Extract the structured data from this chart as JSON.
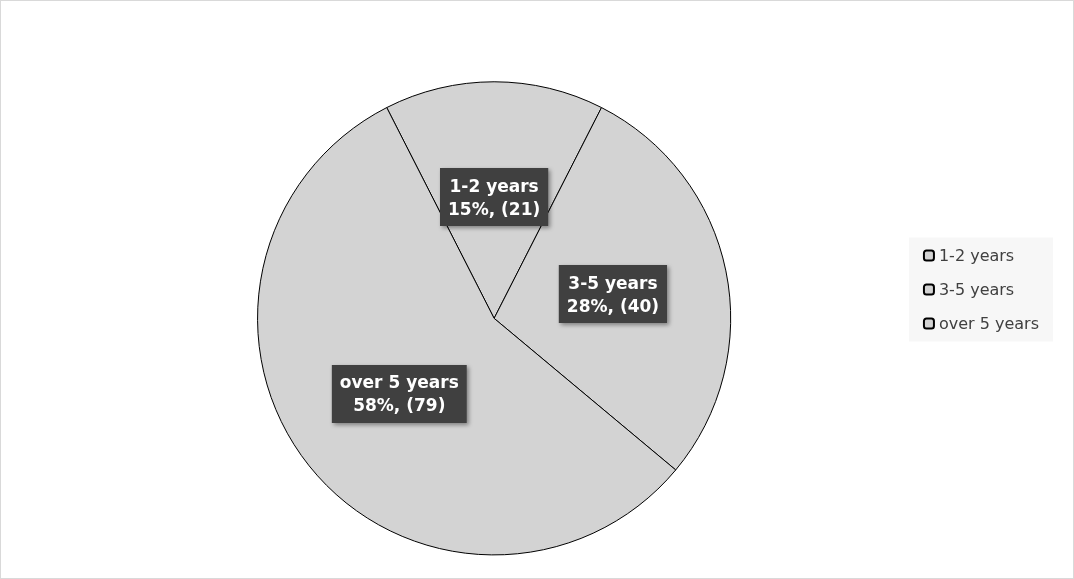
{
  "chart_data": {
    "type": "pie",
    "categories": [
      "1-2 years",
      "3-5 years",
      "over 5 years"
    ],
    "values": [
      21,
      40,
      79
    ],
    "colors": [
      "#d3d3d3",
      "#d3d3d3",
      "#d3d3d3"
    ],
    "value_labels": [
      "15%, (21)",
      "28%, (40)",
      "58%, (79)"
    ],
    "legend": "right"
  }
}
